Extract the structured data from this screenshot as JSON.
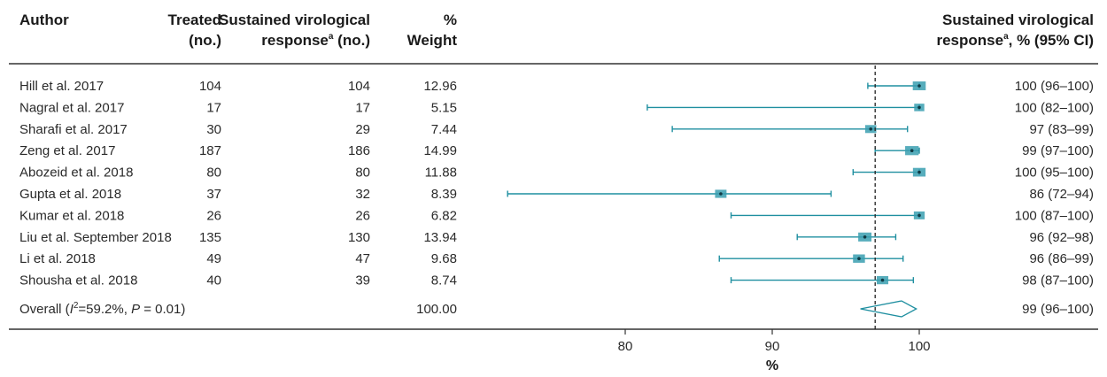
{
  "headers": {
    "author": "Author",
    "treated_1": "Treated",
    "treated_2": "(no.)",
    "svr_1": "Sustained virological",
    "svr_2_main": "response",
    "svr_2_sup": "a",
    "svr_2_tail": " (no.)",
    "weight_1": "%",
    "weight_2": "Weight",
    "ci_1": "Sustained virological",
    "ci_2_main": "response",
    "ci_2_sup": "a",
    "ci_2_tail": ", % (95% CI)"
  },
  "overall": {
    "label_prefix": "Overall (",
    "label_i": "I",
    "label_sup": "2",
    "label_mid": "=59.2%, ",
    "label_p": "P",
    "label_end": " = 0.01)",
    "weight": "100.00",
    "ci_text": "99 (96–100)"
  },
  "colors": {
    "marker": "#1f8fa0",
    "box": "#3a9fb0",
    "text": "#2a2a2a",
    "rule": "#333333"
  },
  "chart_data": {
    "type": "forest",
    "xlabel": "%",
    "xlim": [
      70,
      105
    ],
    "xticks": [
      80,
      90,
      100
    ],
    "reference_line": 97,
    "studies": [
      {
        "author": "Hill et al. 2017",
        "treated": "104",
        "svr": "104",
        "weight": "12.96",
        "ci_text": "100 (96–100)",
        "est": 100,
        "lo": 96.5,
        "hi": 100
      },
      {
        "author": "Nagral et al. 2017",
        "treated": "17",
        "svr": "17",
        "weight": "5.15",
        "ci_text": "100 (82–100)",
        "est": 100,
        "lo": 81.5,
        "hi": 100
      },
      {
        "author": "Sharafi et al. 2017",
        "treated": "30",
        "svr": "29",
        "weight": "7.44",
        "ci_text": "97 (83–99)",
        "est": 96.7,
        "lo": 83.2,
        "hi": 99.2
      },
      {
        "author": "Zeng et al. 2017",
        "treated": "187",
        "svr": "186",
        "weight": "14.99",
        "ci_text": "99 (97–100)",
        "est": 99.5,
        "lo": 97.0,
        "hi": 100
      },
      {
        "author": "Abozeid et al. 2018",
        "treated": "80",
        "svr": "80",
        "weight": "11.88",
        "ci_text": "100 (95–100)",
        "est": 100,
        "lo": 95.5,
        "hi": 100
      },
      {
        "author": "Gupta et al. 2018",
        "treated": "37",
        "svr": "32",
        "weight": "8.39",
        "ci_text": "86 (72–94)",
        "est": 86.5,
        "lo": 72.0,
        "hi": 94.0
      },
      {
        "author": "Kumar et al. 2018",
        "treated": "26",
        "svr": "26",
        "weight": "6.82",
        "ci_text": "100 (87–100)",
        "est": 100,
        "lo": 87.2,
        "hi": 100
      },
      {
        "author": "Liu et al. September 2018",
        "treated": "135",
        "svr": "130",
        "weight": "13.94",
        "ci_text": "96 (92–98)",
        "est": 96.3,
        "lo": 91.7,
        "hi": 98.4
      },
      {
        "author": "Li et al. 2018",
        "treated": "49",
        "svr": "47",
        "weight": "9.68",
        "ci_text": "96 (86–99)",
        "est": 95.9,
        "lo": 86.4,
        "hi": 98.9
      },
      {
        "author": "Shousha et al. 2018",
        "treated": "40",
        "svr": "39",
        "weight": "8.74",
        "ci_text": "98 (87–100)",
        "est": 97.5,
        "lo": 87.2,
        "hi": 99.6
      }
    ],
    "overall": {
      "est": 98.8,
      "lo": 96.0,
      "hi": 99.8
    }
  }
}
